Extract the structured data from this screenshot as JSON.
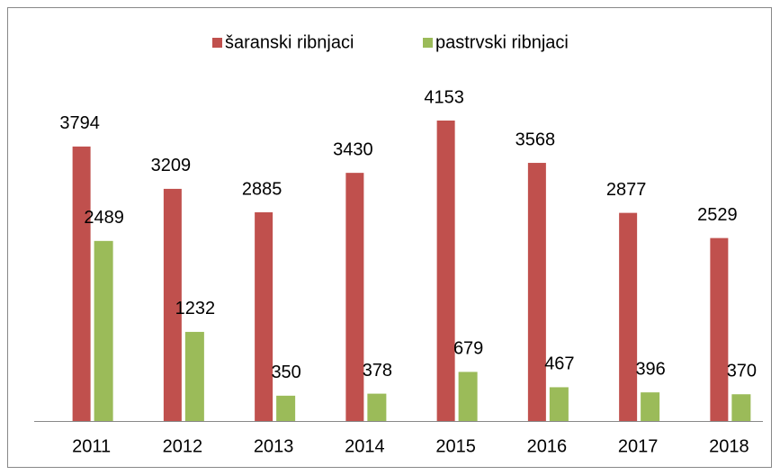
{
  "chart_data": {
    "type": "bar",
    "categories": [
      "2011",
      "2012",
      "2013",
      "2014",
      "2015",
      "2016",
      "2017",
      "2018"
    ],
    "series": [
      {
        "name": "šaranski ribnjaci",
        "color": "#c0504d",
        "values": [
          3794,
          3209,
          2885,
          3430,
          4153,
          3568,
          2877,
          2529
        ]
      },
      {
        "name": "pastrvski ribnjaci",
        "color": "#9bbb59",
        "values": [
          2489,
          1232,
          350,
          378,
          679,
          467,
          396,
          370
        ]
      }
    ],
    "legend": "top"
  }
}
